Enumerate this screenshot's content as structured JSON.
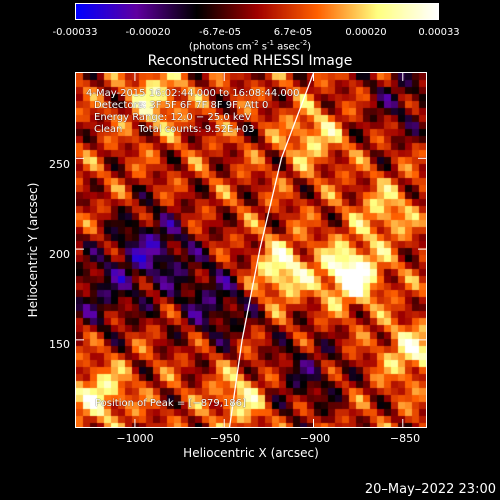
{
  "colorbar": {
    "ticks": [
      "-0.00033",
      "-0.00020",
      "-6.7e-05",
      "6.7e-05",
      "0.00020",
      "0.00033"
    ],
    "unit_pre": "(photons cm",
    "unit_sup1": "-2",
    "unit_mid1": " s",
    "unit_sup2": "-1",
    "unit_mid2": " asec",
    "unit_sup3": "-2",
    "unit_post": ")"
  },
  "chart_data": {
    "type": "heatmap",
    "title": "Reconstructed RHESSI Image",
    "xlabel": "Heliocentric X (arcsec)",
    "ylabel": "Heliocentric Y (arcsec)",
    "xlim": [
      -1033,
      -837
    ],
    "ylim": [
      102,
      297
    ],
    "xticks": [
      -1000,
      -950,
      -900,
      -850
    ],
    "xtick_labels": [
      "−1000",
      "−950",
      "−900",
      "−850"
    ],
    "yticks": [
      150,
      200,
      250
    ],
    "ytick_labels": [
      "150",
      "200",
      "250"
    ],
    "zlim": [
      -0.00033,
      0.00033
    ],
    "colormap": [
      "#0000ff",
      "#6000a0",
      "#000000",
      "#a00000",
      "#ff6000",
      "#ffff80",
      "#ffffff"
    ],
    "peak": {
      "x": -879,
      "y": 186
    },
    "hot_spots": [
      {
        "x": -879,
        "y": 186,
        "value": 0.00033
      },
      {
        "x": -918,
        "y": 188,
        "value": 0.00024
      },
      {
        "x": -1020,
        "y": 120,
        "value": 0.0002
      },
      {
        "x": -988,
        "y": 283,
        "value": 0.00018
      },
      {
        "x": -845,
        "y": 143,
        "value": 0.0002
      },
      {
        "x": -900,
        "y": 262,
        "value": 0.00016
      },
      {
        "x": -940,
        "y": 118,
        "value": 0.00017
      },
      {
        "x": -860,
        "y": 220,
        "value": 0.00015
      }
    ],
    "cold_spots": [
      {
        "x": -990,
        "y": 200,
        "value": -0.00022
      },
      {
        "x": -955,
        "y": 170,
        "value": -0.00018
      },
      {
        "x": -1020,
        "y": 175,
        "value": -0.00015
      },
      {
        "x": -850,
        "y": 282,
        "value": -0.00013
      },
      {
        "x": -905,
        "y": 130,
        "value": -0.00014
      }
    ],
    "limb_curve": [
      {
        "x": -900,
        "y": 297
      },
      {
        "x": -918,
        "y": 250
      },
      {
        "x": -930,
        "y": 200
      },
      {
        "x": -940,
        "y": 150
      },
      {
        "x": -947,
        "y": 102
      }
    ]
  },
  "annotations": {
    "time_range": "4-May-2015 16:02:44.000 to 16:08:44.000",
    "detectors": "Detectors: 3F 5F 6F 7F 8F 9F, Att 0",
    "energy": "Energy Range: 12.0 − 25.0 keV",
    "clean": "Clean     Total counts: 9.52E+03",
    "peak": "Position of Peak = [−879,186]"
  },
  "timestamp": "20–May–2022 23:00"
}
